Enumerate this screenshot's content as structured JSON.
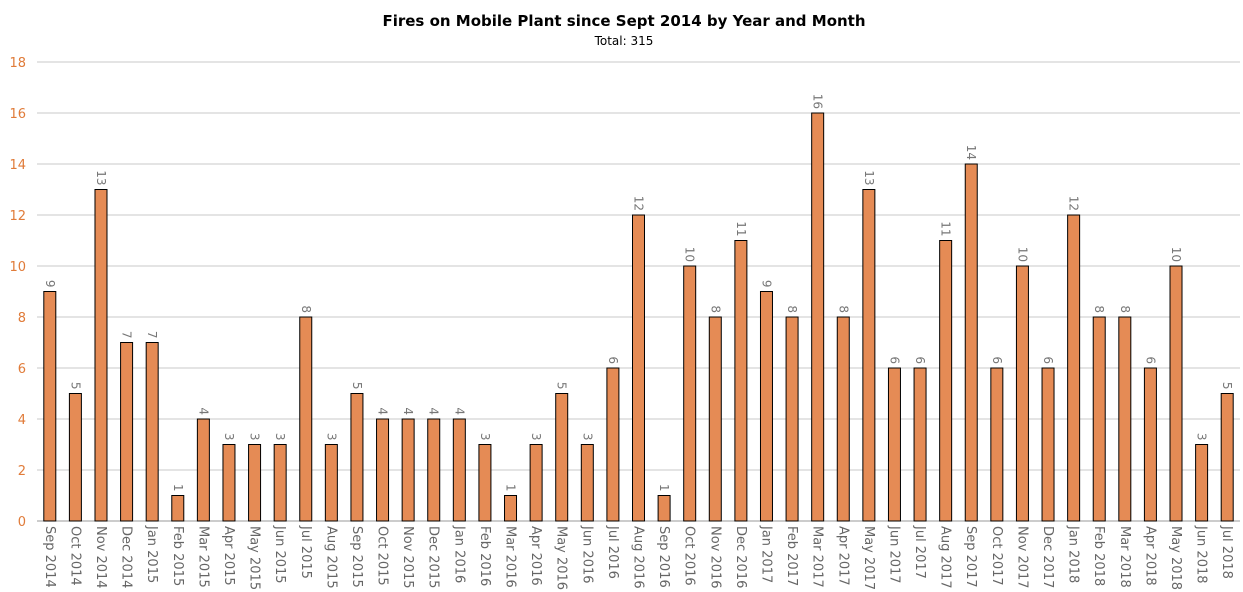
{
  "chart_data": {
    "type": "bar",
    "title": "Fires on Mobile Plant since Sept 2014 by Year and Month",
    "subtitle": "Total: 315",
    "categories": [
      "Sep 2014",
      "Oct 2014",
      "Nov 2014",
      "Dec 2014",
      "Jan 2015",
      "Feb 2015",
      "Mar 2015",
      "Apr 2015",
      "May 2015",
      "Jun 2015",
      "Jul 2015",
      "Aug 2015",
      "Sep 2015",
      "Oct 2015",
      "Nov 2015",
      "Dec 2015",
      "Jan 2016",
      "Feb 2016",
      "Mar 2016",
      "Apr 2016",
      "May 2016",
      "Jun 2016",
      "Jul 2016",
      "Aug 2016",
      "Sep 2016",
      "Oct 2016",
      "Nov 2016",
      "Dec 2016",
      "Jan 2017",
      "Feb 2017",
      "Mar 2017",
      "Apr 2017",
      "May 2017",
      "Jun 2017",
      "Jul 2017",
      "Aug 2017",
      "Sep 2017",
      "Oct 2017",
      "Nov 2017",
      "Dec 2017",
      "Jan 2018",
      "Feb 2018",
      "Mar 2018",
      "Apr 2018",
      "May 2018",
      "Jun 2018",
      "Jul 2018"
    ],
    "values": [
      9,
      5,
      13,
      7,
      7,
      1,
      4,
      3,
      3,
      3,
      8,
      3,
      5,
      4,
      4,
      4,
      4,
      3,
      1,
      3,
      5,
      3,
      6,
      12,
      1,
      10,
      8,
      11,
      9,
      8,
      16,
      8,
      13,
      6,
      6,
      11,
      14,
      6,
      10,
      6,
      12,
      8,
      8,
      6,
      10,
      3,
      5
    ],
    "color": "#e58b55",
    "ylim": [
      0,
      18
    ],
    "yticks": [
      0,
      2,
      4,
      6,
      8,
      10,
      12,
      14,
      16,
      18
    ],
    "grid": true
  }
}
